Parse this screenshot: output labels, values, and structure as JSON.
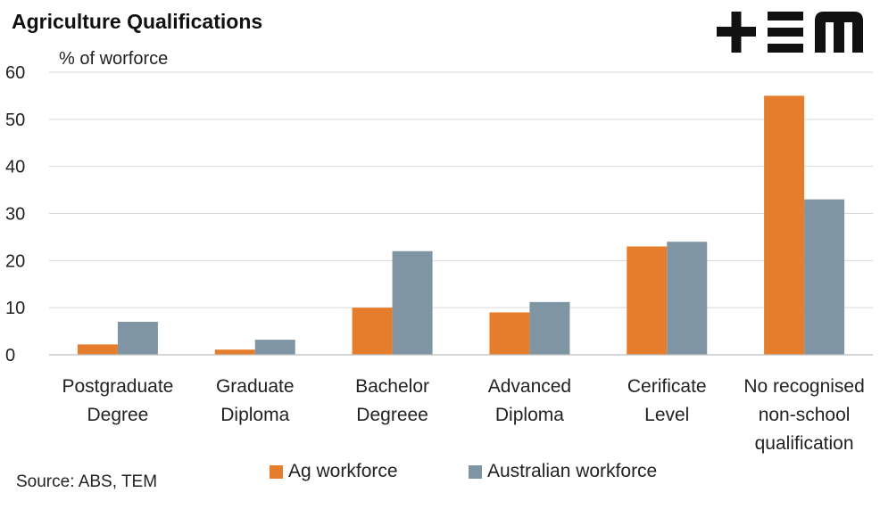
{
  "chart_data": {
    "type": "bar",
    "title": "Agriculture Qualifications",
    "ylabel": "% of worforce",
    "ylim": [
      0,
      60
    ],
    "yticks": [
      0,
      10,
      20,
      30,
      40,
      50,
      60
    ],
    "grid": true,
    "legend_position": "bottom",
    "categories": [
      [
        "Postgraduate",
        "Degree"
      ],
      [
        "Graduate",
        "Diploma"
      ],
      [
        "Bachelor",
        "Degreee"
      ],
      [
        "Advanced",
        "Diploma"
      ],
      [
        "Cerificate",
        "Level"
      ],
      [
        "No recognised",
        "non-school",
        "qualification"
      ]
    ],
    "series": [
      {
        "name": "Ag workforce",
        "color": "#E67D2C",
        "values": [
          2.2,
          1.1,
          10,
          9,
          23,
          55
        ]
      },
      {
        "name": "Australian workforce",
        "color": "#7F95A3",
        "values": [
          7,
          3.2,
          22,
          11.2,
          24,
          33
        ]
      }
    ]
  },
  "source": "Source: ABS, TEM",
  "logo": {
    "name": "tem-logo",
    "color": "#111111"
  }
}
